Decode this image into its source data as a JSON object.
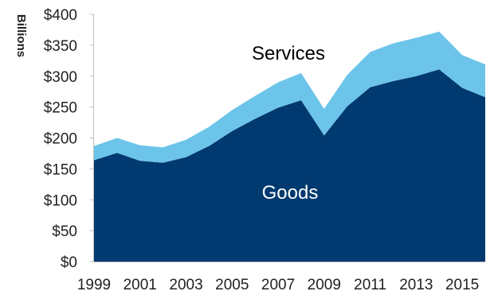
{
  "chart_data": {
    "type": "area",
    "stacked": true,
    "title": "",
    "xlabel": "",
    "ylabel": "Billions",
    "ylim": [
      0,
      400
    ],
    "y_ticks": [
      "$0",
      "$50",
      "$100",
      "$150",
      "$200",
      "$250",
      "$300",
      "$350",
      "$400"
    ],
    "y_tick_values": [
      0,
      50,
      100,
      150,
      200,
      250,
      300,
      350,
      400
    ],
    "x": [
      1999,
      2000,
      2001,
      2002,
      2003,
      2004,
      2005,
      2006,
      2007,
      2008,
      2009,
      2010,
      2011,
      2012,
      2013,
      2014,
      2015,
      2016
    ],
    "x_tick_labels": [
      "1999",
      "2001",
      "2003",
      "2005",
      "2007",
      "2009",
      "2011",
      "2013",
      "2015"
    ],
    "series": [
      {
        "name": "Goods",
        "color": "#003a70",
        "label_color": "#ffffff",
        "values": [
          164,
          176,
          163,
          160,
          169,
          187,
          211,
          231,
          249,
          261,
          204,
          251,
          282,
          292,
          300,
          311,
          281,
          266
        ]
      },
      {
        "name": "Services",
        "color": "#6cc4ea",
        "label_color": "#000000",
        "values": [
          23,
          24,
          25,
          25,
          28,
          31,
          34,
          37,
          41,
          44,
          43,
          51,
          57,
          61,
          62,
          61,
          53,
          53
        ]
      }
    ],
    "grid": false,
    "legend": "none"
  }
}
